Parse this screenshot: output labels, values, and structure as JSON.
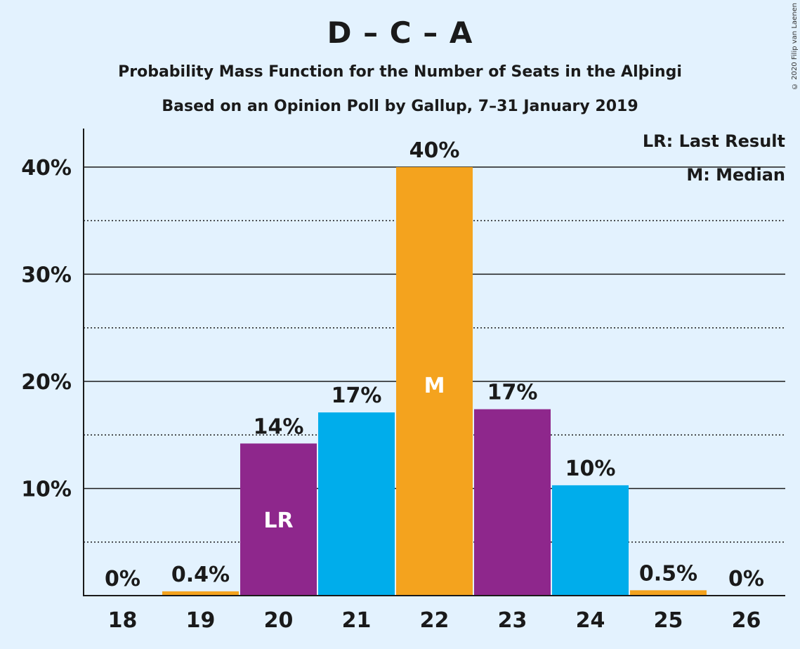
{
  "title": "D – C – A",
  "subtitle1": "Probability Mass Function for the Number of Seats in the Alþingi",
  "subtitle2": "Based on an Opinion Poll by Gallup, 7–31 January 2019",
  "copyright": "© 2020 Filip van Laenen",
  "legend": {
    "lr": "LR: Last Result",
    "m": "M: Median"
  },
  "colors": {
    "purple": "#8e278c",
    "blue": "#00adeb",
    "orange": "#f4a31e",
    "background": "#e3f2fe"
  },
  "chart_data": {
    "type": "bar",
    "categories": [
      "18",
      "19",
      "20",
      "21",
      "22",
      "23",
      "24",
      "25",
      "26"
    ],
    "values": [
      0,
      0.4,
      14.2,
      17.1,
      40.0,
      17.4,
      10.3,
      0.5,
      0
    ],
    "value_labels": [
      "0%",
      "0.4%",
      "14%",
      "17%",
      "40%",
      "17%",
      "10%",
      "0.5%",
      "0%"
    ],
    "bar_colors": [
      "#8e278c",
      "#f4a31e",
      "#8e278c",
      "#00adeb",
      "#f4a31e",
      "#8e278c",
      "#00adeb",
      "#f4a31e",
      "#00adeb"
    ],
    "markers": {
      "20": "LR",
      "22": "M"
    },
    "yticks": [
      10,
      20,
      30,
      40
    ],
    "ytick_labels": [
      "10%",
      "20%",
      "30%",
      "40%"
    ],
    "minor_gridlines": [
      5,
      15,
      25,
      35
    ],
    "ylim": [
      0,
      43.6
    ],
    "xlabel": "",
    "ylabel": "",
    "legend_placement": "top-right"
  }
}
